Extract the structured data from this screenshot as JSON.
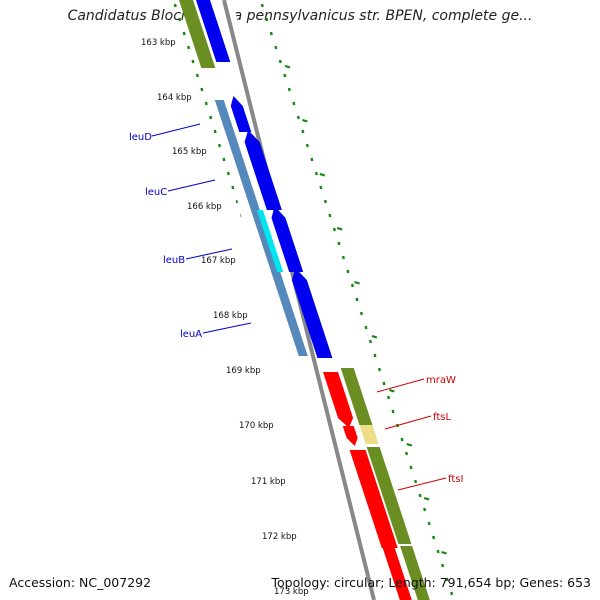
{
  "title": "Candidatus Blochmannia pennsylvanicus str. BPEN, complete ge...",
  "footer": {
    "accession": "Accession: NC_007292",
    "summary": "Topology: circular; Length: 791,654 bp; Genes: 653"
  },
  "kbp_labels": [
    "163 kbp",
    "164 kbp",
    "165 kbp",
    "166 kbp",
    "167 kbp",
    "168 kbp",
    "169 kbp",
    "170 kbp",
    "171 kbp",
    "172 kbp",
    "173 kbp"
  ],
  "gene_labels": {
    "left": [
      "leuD",
      "leuC",
      "leuB",
      "leuA"
    ],
    "right": [
      "mraW",
      "ftsL",
      "ftsI"
    ]
  },
  "colors": {
    "leu_labels": "#0000cc",
    "fts_labels": "#cc0000",
    "tick_marks": "#118811",
    "forward_cds": "#0000ee",
    "gene_track": "#5588bb",
    "highlight": "#00e5ee",
    "reverse_cds": "#ff0000",
    "olive_track": "#6b8e23",
    "pale_yellow": "#eedd88",
    "backbone": "#888888"
  }
}
